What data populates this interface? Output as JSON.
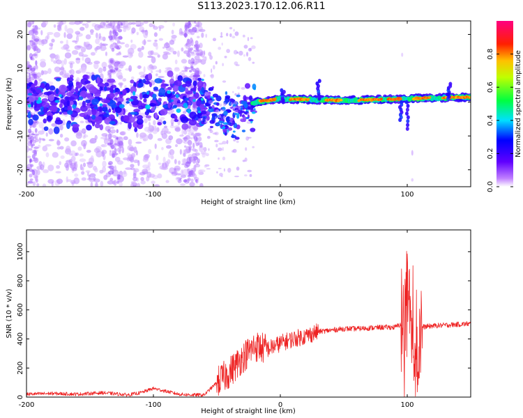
{
  "title": "S113.2023.170.12.06.R11",
  "colors": {
    "snr_line": "#ee2222",
    "axis": "#000000"
  },
  "chart_data": [
    {
      "type": "heatmap",
      "title": "S113.2023.170.12.06.R11",
      "xlabel": "Height of straight line (km)",
      "ylabel": "Frequency (Hz)",
      "xlim": [
        -200,
        150
      ],
      "ylim": [
        -25,
        24
      ],
      "xticks": [
        -200,
        -100,
        0,
        100
      ],
      "yticks": [
        -20,
        -10,
        0,
        10,
        20
      ],
      "colorbar": {
        "label": "Normalized spectral amplitude",
        "range": [
          0,
          1
        ],
        "ticks": [
          "0.0",
          "0.2",
          "0.4",
          "0.6",
          "0.8"
        ],
        "colormap": "rainbow (white/purple → blue → cyan → green → yellow → red → pink)"
      },
      "description_ridge": [
        {
          "x": -200,
          "y": 0
        },
        {
          "x": -60,
          "y": 0
        },
        {
          "x": -40,
          "y": -5
        },
        {
          "x": -20,
          "y": 0
        },
        {
          "x": 0,
          "y": 1
        },
        {
          "x": 50,
          "y": 0.5
        },
        {
          "x": 100,
          "y": 1
        },
        {
          "x": 150,
          "y": 1.5
        }
      ]
    },
    {
      "type": "line",
      "xlabel": "Height of straight line (km)",
      "ylabel": "SNR (10 * v/v)",
      "xlim": [
        -200,
        150
      ],
      "ylim": [
        0,
        1150
      ],
      "xticks": [
        -200,
        -100,
        0,
        100
      ],
      "yticks": [
        0,
        200,
        400,
        600,
        800,
        1000
      ],
      "series": [
        {
          "x": [
            -200,
            -180,
            -160,
            -140,
            -120,
            -110,
            -100,
            -90,
            -80,
            -70,
            -60,
            -50,
            -40,
            -30,
            -20,
            -10,
            0,
            10,
            20,
            30,
            40,
            50,
            60,
            70,
            80,
            90,
            95,
            100,
            105,
            110,
            120,
            130,
            140,
            150
          ],
          "values": [
            20,
            25,
            20,
            30,
            15,
            30,
            60,
            40,
            20,
            15,
            15,
            100,
            170,
            270,
            350,
            330,
            370,
            400,
            420,
            450,
            460,
            470,
            470,
            475,
            480,
            480,
            500,
            600,
            300,
            480,
            490,
            495,
            500,
            505
          ]
        }
      ]
    }
  ]
}
